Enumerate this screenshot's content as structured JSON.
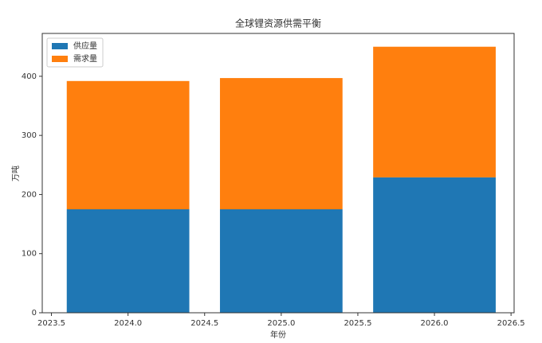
{
  "chart_data": {
    "type": "bar",
    "stacked": true,
    "title": "全球锂资源供需平衡",
    "x_label": "年份",
    "y_label": "万吨",
    "x": [
      2024,
      2025,
      2026
    ],
    "series": [
      {
        "name": "供应量",
        "color": "#1f77b4",
        "values": [
          175,
          175,
          229
        ]
      },
      {
        "name": "需求量",
        "color": "#ff7f0e",
        "values": [
          217,
          222,
          221
        ]
      }
    ],
    "xlim": [
      2023.44,
      2026.52
    ],
    "xticks": [
      2023.5,
      {
        "value": 2024,
        "label": "2024.0"
      },
      2024.5,
      {
        "value": 2025,
        "label": "2025.0"
      },
      2025.5,
      {
        "value": 2026,
        "label": "2026.0"
      },
      2026.5
    ],
    "ylim": [
      0,
      472.5
    ],
    "yticks": [
      0,
      100,
      200,
      300,
      400
    ],
    "legend": "upper left"
  }
}
